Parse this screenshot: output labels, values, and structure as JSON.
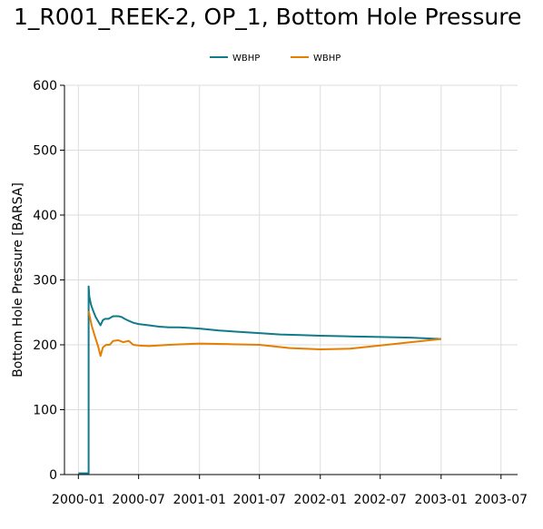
{
  "chart_data": {
    "type": "line",
    "title": "1_R001_REEK-2, OP_1, Bottom Hole Pressure",
    "xlabel": "",
    "ylabel": "Bottom Hole Pressure [BARSA]",
    "ylim": [
      0,
      600
    ],
    "yticks": [
      0,
      100,
      200,
      300,
      400,
      500,
      600
    ],
    "xlim": [
      "1999-11-20",
      "2003-08-20"
    ],
    "xticks": [
      "2000-01",
      "2000-07",
      "2001-01",
      "2001-07",
      "2002-01",
      "2002-07",
      "2003-01",
      "2003-07"
    ],
    "grid": true,
    "legend_position": "top-center",
    "series": [
      {
        "name": "WBHP",
        "color": "#117a8b",
        "x": [
          "2000-01-01",
          "2000-02-01",
          "2000-02-01",
          "2000-02-03",
          "2000-02-08",
          "2000-02-15",
          "2000-02-22",
          "2000-03-01",
          "2000-03-08",
          "2000-03-15",
          "2000-03-22",
          "2000-04-01",
          "2000-04-15",
          "2000-05-01",
          "2000-05-10",
          "2000-05-20",
          "2000-06-01",
          "2000-06-15",
          "2000-07-01",
          "2000-08-01",
          "2000-09-01",
          "2000-10-01",
          "2000-11-01",
          "2000-12-01",
          "2001-01-01",
          "2001-03-01",
          "2001-05-01",
          "2001-07-01",
          "2001-09-01",
          "2001-11-01",
          "2002-01-01",
          "2002-04-01",
          "2002-07-01",
          "2002-10-01",
          "2003-01-01"
        ],
        "y": [
          2,
          2,
          290,
          275,
          262,
          252,
          243,
          236,
          230,
          238,
          240,
          240,
          244,
          244,
          243,
          240,
          237,
          234,
          232,
          230,
          228,
          227,
          227,
          226,
          225,
          222,
          220,
          218,
          216,
          215,
          214,
          213,
          212,
          211,
          209
        ]
      },
      {
        "name": "WBHP",
        "color": "#e67e00",
        "x": [
          "2000-02-01",
          "2000-02-10",
          "2000-02-20",
          "2000-03-01",
          "2000-03-08",
          "2000-03-15",
          "2000-03-25",
          "2000-04-05",
          "2000-04-15",
          "2000-05-01",
          "2000-05-15",
          "2000-06-01",
          "2000-06-15",
          "2000-07-01",
          "2000-08-01",
          "2000-10-01",
          "2001-01-01",
          "2001-04-01",
          "2001-07-01",
          "2001-10-01",
          "2002-01-01",
          "2002-04-01",
          "2002-07-01",
          "2002-10-01",
          "2003-01-01"
        ],
        "y": [
          252,
          230,
          213,
          197,
          183,
          196,
          200,
          200,
          206,
          207,
          204,
          206,
          200,
          199,
          198,
          200,
          202,
          201,
          200,
          195,
          193,
          194,
          199,
          204,
          209
        ]
      }
    ]
  }
}
